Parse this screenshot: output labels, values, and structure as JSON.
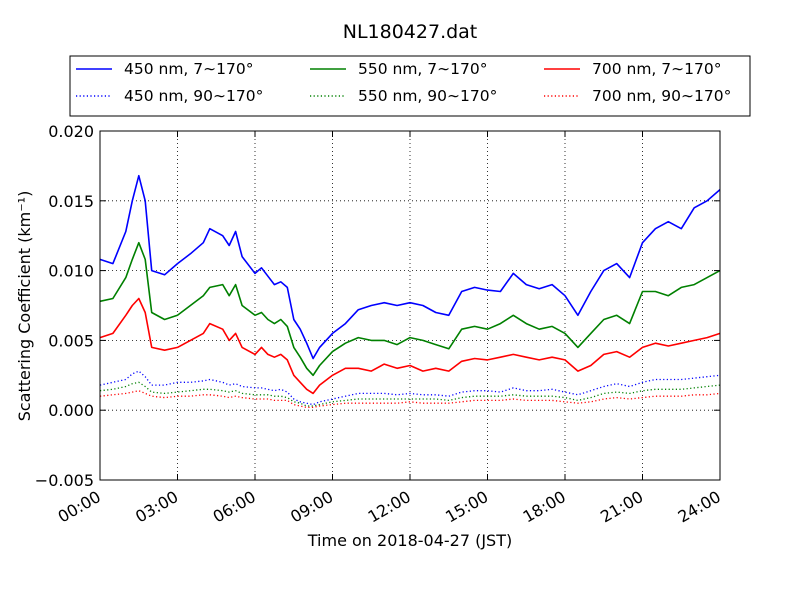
{
  "chart_data": {
    "type": "line",
    "title": "NL180427.dat",
    "xlabel": "Time on 2018-04-27 (JST)",
    "ylabel": "Scattering Coefficient (km⁻¹)",
    "x_tick_labels": [
      "00:00",
      "03:00",
      "06:00",
      "09:00",
      "12:00",
      "15:00",
      "18:00",
      "21:00",
      "24:00"
    ],
    "x_tick_hours": [
      0,
      3,
      6,
      9,
      12,
      15,
      18,
      21,
      24
    ],
    "xlim_hours": [
      0,
      24
    ],
    "y_tick_labels": [
      "0.020",
      "0.015",
      "0.010",
      "0.005",
      "0.000",
      "−0.005"
    ],
    "y_ticks": [
      0.02,
      0.015,
      0.01,
      0.005,
      0.0,
      -0.005
    ],
    "ylim": [
      -0.005,
      0.02
    ],
    "grid": true,
    "legend_placement": "top, above axes",
    "x": [
      0,
      0.5,
      1,
      1.25,
      1.5,
      1.75,
      2,
      2.5,
      3,
      3.5,
      4,
      4.25,
      4.75,
      5,
      5.25,
      5.5,
      6,
      6.25,
      6.5,
      6.75,
      7,
      7.25,
      7.5,
      7.75,
      8,
      8.25,
      8.5,
      9,
      9.5,
      10,
      10.5,
      11,
      11.5,
      12,
      12.5,
      13,
      13.5,
      14,
      14.5,
      15,
      15.5,
      16,
      16.5,
      17,
      17.5,
      18,
      18.5,
      19,
      19.5,
      20,
      20.5,
      21,
      21.5,
      22,
      22.5,
      23,
      23.5,
      24
    ],
    "series": [
      {
        "name": "450 nm, 7∼170°",
        "color": "#0000ff",
        "style": "solid",
        "values": [
          0.0108,
          0.0105,
          0.0128,
          0.015,
          0.0168,
          0.015,
          0.01,
          0.0097,
          0.0105,
          0.0112,
          0.012,
          0.013,
          0.0125,
          0.0118,
          0.0128,
          0.011,
          0.0098,
          0.0102,
          0.0096,
          0.009,
          0.0092,
          0.0088,
          0.0065,
          0.0058,
          0.0048,
          0.0037,
          0.0045,
          0.0055,
          0.0062,
          0.0072,
          0.0075,
          0.0077,
          0.0075,
          0.0077,
          0.0075,
          0.007,
          0.0068,
          0.0085,
          0.0088,
          0.0086,
          0.0085,
          0.0098,
          0.009,
          0.0087,
          0.009,
          0.0082,
          0.0068,
          0.0085,
          0.01,
          0.0105,
          0.0095,
          0.012,
          0.013,
          0.0135,
          0.013,
          0.0145,
          0.015,
          0.0158
        ]
      },
      {
        "name": "550 nm, 7∼170°",
        "color": "#008000",
        "style": "solid",
        "values": [
          0.0078,
          0.008,
          0.0095,
          0.0108,
          0.012,
          0.0108,
          0.007,
          0.0065,
          0.0068,
          0.0075,
          0.0082,
          0.0088,
          0.009,
          0.0082,
          0.009,
          0.0075,
          0.0068,
          0.007,
          0.0065,
          0.0062,
          0.0065,
          0.006,
          0.0045,
          0.0038,
          0.003,
          0.0025,
          0.0032,
          0.0042,
          0.0048,
          0.0052,
          0.005,
          0.005,
          0.0047,
          0.0052,
          0.005,
          0.0047,
          0.0044,
          0.0058,
          0.006,
          0.0058,
          0.0062,
          0.0068,
          0.0062,
          0.0058,
          0.006,
          0.0055,
          0.0045,
          0.0055,
          0.0065,
          0.0068,
          0.0062,
          0.0085,
          0.0085,
          0.0082,
          0.0088,
          0.009,
          0.0095,
          0.01
        ]
      },
      {
        "name": "700 nm, 7∼170°",
        "color": "#ff0000",
        "style": "solid",
        "values": [
          0.0052,
          0.0055,
          0.0068,
          0.0075,
          0.008,
          0.007,
          0.0045,
          0.0043,
          0.0045,
          0.005,
          0.0055,
          0.0062,
          0.0058,
          0.005,
          0.0055,
          0.0045,
          0.004,
          0.0045,
          0.004,
          0.0038,
          0.004,
          0.0036,
          0.0025,
          0.002,
          0.0015,
          0.0012,
          0.0018,
          0.0025,
          0.003,
          0.003,
          0.0028,
          0.0033,
          0.003,
          0.0032,
          0.0028,
          0.003,
          0.0028,
          0.0035,
          0.0037,
          0.0036,
          0.0038,
          0.004,
          0.0038,
          0.0036,
          0.0038,
          0.0036,
          0.0028,
          0.0032,
          0.004,
          0.0042,
          0.0038,
          0.0045,
          0.0048,
          0.0046,
          0.0048,
          0.005,
          0.0052,
          0.0055
        ]
      },
      {
        "name": "450 nm, 90∼170°",
        "color": "#0000ff",
        "style": "dotted",
        "values": [
          0.0018,
          0.002,
          0.0022,
          0.0026,
          0.0028,
          0.0024,
          0.0018,
          0.0018,
          0.002,
          0.002,
          0.0021,
          0.0022,
          0.002,
          0.0018,
          0.0019,
          0.0017,
          0.0016,
          0.0016,
          0.0015,
          0.0014,
          0.0015,
          0.0013,
          0.0008,
          0.0006,
          0.0005,
          0.0004,
          0.0006,
          0.0008,
          0.001,
          0.0012,
          0.0012,
          0.0012,
          0.0011,
          0.0012,
          0.0011,
          0.0011,
          0.001,
          0.0013,
          0.0014,
          0.0014,
          0.0013,
          0.0016,
          0.0014,
          0.0014,
          0.0015,
          0.0013,
          0.0011,
          0.0014,
          0.0017,
          0.0019,
          0.0017,
          0.002,
          0.0022,
          0.0022,
          0.0022,
          0.0023,
          0.0024,
          0.0025
        ]
      },
      {
        "name": "550 nm, 90∼170°",
        "color": "#008000",
        "style": "dotted",
        "values": [
          0.0014,
          0.0015,
          0.0017,
          0.0019,
          0.002,
          0.0017,
          0.0013,
          0.0012,
          0.0013,
          0.0014,
          0.0015,
          0.0015,
          0.0014,
          0.0013,
          0.0014,
          0.0012,
          0.0011,
          0.0011,
          0.0011,
          0.001,
          0.001,
          0.0009,
          0.0006,
          0.0005,
          0.0003,
          0.0003,
          0.0004,
          0.0006,
          0.0007,
          0.0008,
          0.0008,
          0.0008,
          0.0008,
          0.0008,
          0.0008,
          0.0008,
          0.0007,
          0.0009,
          0.001,
          0.001,
          0.001,
          0.0011,
          0.001,
          0.001,
          0.001,
          0.0009,
          0.0007,
          0.0009,
          0.0012,
          0.0013,
          0.0012,
          0.0014,
          0.0015,
          0.0015,
          0.0015,
          0.0016,
          0.0017,
          0.0018
        ]
      },
      {
        "name": "700 nm, 90∼170°",
        "color": "#ff0000",
        "style": "dotted",
        "values": [
          0.001,
          0.0011,
          0.0012,
          0.0013,
          0.0014,
          0.0012,
          0.001,
          0.0009,
          0.001,
          0.001,
          0.0011,
          0.0011,
          0.001,
          0.0009,
          0.001,
          0.0009,
          0.0008,
          0.0008,
          0.0008,
          0.0007,
          0.0007,
          0.0007,
          0.0004,
          0.0003,
          0.0002,
          0.0002,
          0.0003,
          0.0004,
          0.0005,
          0.0005,
          0.0005,
          0.0005,
          0.0005,
          0.0006,
          0.0005,
          0.0005,
          0.0005,
          0.0006,
          0.0007,
          0.0007,
          0.0007,
          0.0008,
          0.0007,
          0.0007,
          0.0007,
          0.0006,
          0.0005,
          0.0006,
          0.0008,
          0.0009,
          0.0008,
          0.0009,
          0.001,
          0.001,
          0.001,
          0.0011,
          0.0011,
          0.0012
        ]
      }
    ],
    "legend": [
      "450 nm, 7∼170°",
      "550 nm, 7∼170°",
      "700 nm, 7∼170°",
      "450 nm, 90∼170°",
      "550 nm, 90∼170°",
      "700 nm, 90∼170°"
    ]
  }
}
